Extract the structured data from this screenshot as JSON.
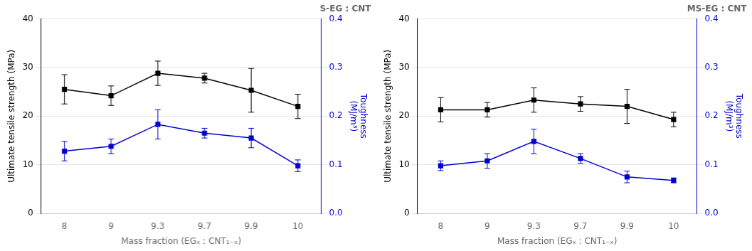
{
  "chart_data": [
    {
      "type": "line",
      "title": "S-EG : CNT",
      "x_label": "Mass fraction (EGₓ : CNT₁₋ₓ)",
      "y_label": "Ultimate tensile strength (MPa)",
      "y2_label": "Toughness\n(MJ/m³)",
      "categories": [
        "8",
        "9",
        "9.3",
        "9.7",
        "9.9",
        "10"
      ],
      "ylim": [
        0,
        40
      ],
      "yticks": [
        0,
        10,
        20,
        30,
        40
      ],
      "y2lim": [
        0.0,
        0.4
      ],
      "y2ticks": [
        {
          "value": 0.0,
          "label": "0.0"
        },
        0.1,
        0.2,
        0.3,
        0.4
      ],
      "grid": true,
      "series": [
        {
          "color": "#000000",
          "marker": "square",
          "line_style": "solid",
          "values": [
            25.5,
            24.2,
            28.8,
            27.8,
            25.3,
            22.0
          ],
          "errors": [
            3.0,
            2.0,
            2.5,
            1.0,
            4.5,
            2.5
          ]
        },
        {
          "color": "#0000cc",
          "marker": "square",
          "line_style": "solid",
          "axis": "y2",
          "values": [
            0.128,
            0.138,
            0.183,
            0.165,
            0.155,
            0.098
          ],
          "errors": [
            0.02,
            0.015,
            0.03,
            0.01,
            0.02,
            0.012
          ]
        }
      ]
    },
    {
      "type": "line",
      "title": "MS-EG : CNT",
      "x_label": "Mass fraction (EGₓ : CNT₁₋ₓ)",
      "y_label": "Ultimate tensile strength (MPa)",
      "y2_label": "Toughness\n(MJ/m³)",
      "categories": [
        "8",
        "9",
        "9.3",
        "9.7",
        "9.9",
        "10"
      ],
      "ylim": [
        0,
        40
      ],
      "yticks": [
        0,
        10,
        20,
        30,
        40
      ],
      "y2lim": [
        0.0,
        0.4
      ],
      "y2ticks": [
        {
          "value": 0.0,
          "label": "0.0"
        },
        0.1,
        0.2,
        0.3,
        0.4
      ],
      "grid": true,
      "series": [
        {
          "color": "#000000",
          "marker": "square",
          "line_style": "solid",
          "values": [
            21.3,
            21.3,
            23.3,
            22.5,
            22.0,
            19.3
          ],
          "errors": [
            2.5,
            1.5,
            2.5,
            1.5,
            3.5,
            1.5
          ]
        },
        {
          "color": "#0000cc",
          "marker": "square",
          "line_style": "solid",
          "axis": "y2",
          "values": [
            0.098,
            0.108,
            0.148,
            0.113,
            0.075,
            0.068
          ],
          "errors": [
            0.01,
            0.015,
            0.025,
            0.01,
            0.012,
            0.005
          ]
        }
      ]
    }
  ]
}
